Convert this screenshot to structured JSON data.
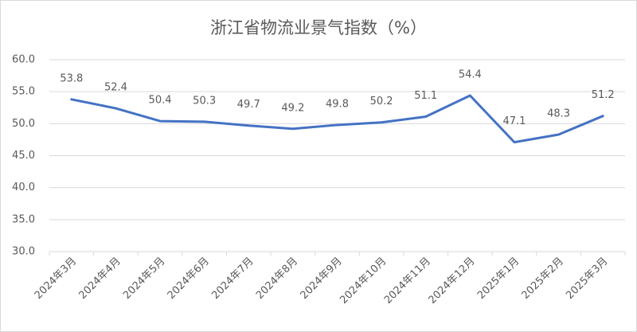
{
  "chart_data": {
    "type": "line",
    "title": "浙江省物流业景气指数（%）",
    "categories": [
      "2024年3月",
      "2024年4月",
      "2024年5月",
      "2024年6月",
      "2024年7月",
      "2024年8月",
      "2024年9月",
      "2024年10月",
      "2024年11月",
      "2024年12月",
      "2025年1月",
      "2025年2月",
      "2025年3月"
    ],
    "series": [
      {
        "name": "浙江省物流业景气指数",
        "color": "#4472c4",
        "values": [
          53.8,
          52.4,
          50.4,
          50.3,
          49.7,
          49.2,
          49.8,
          50.2,
          51.1,
          54.4,
          47.1,
          48.3,
          51.2
        ]
      }
    ],
    "ylim": [
      30,
      60
    ],
    "yticks": [
      {
        "value": 30,
        "label": "30.0"
      },
      {
        "value": 35,
        "label": "35.0"
      },
      {
        "value": 40,
        "label": "40.0"
      },
      {
        "value": 45,
        "label": "45.0"
      },
      {
        "value": 50,
        "label": "50.0"
      },
      {
        "value": 55,
        "label": "55.0"
      },
      {
        "value": 60,
        "label": "60.0"
      }
    ],
    "grid": true
  }
}
